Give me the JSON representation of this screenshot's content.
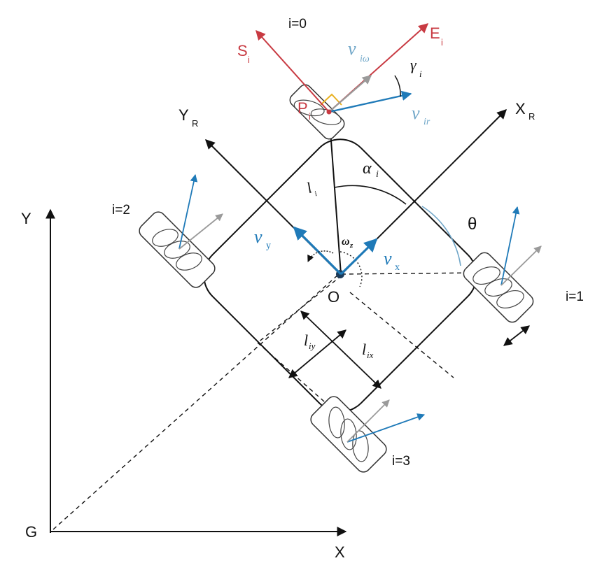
{
  "labels": {
    "wheel0": "i=0",
    "wheel1": "i=1",
    "wheel2": "i=2",
    "wheel3": "i=3",
    "global_x": "X",
    "global_y": "Y",
    "global_origin": "G",
    "robot_origin": "O",
    "robot_x": "X",
    "robot_x_sub": "R",
    "robot_y": "Y",
    "robot_y_sub": "R",
    "e_axis": "E",
    "e_axis_sub": "i",
    "s_axis": "S",
    "s_axis_sub": "i",
    "p_point": "P",
    "p_point_sub": "i",
    "gamma": "γ",
    "gamma_sub": "i",
    "alpha": "α",
    "alpha_sub": "i",
    "theta": "θ",
    "l_len": "l",
    "l_len_sub": "i",
    "v_x": "v",
    "v_x_sub": "x",
    "v_y": "v",
    "v_y_sub": "y",
    "v_iw": "v",
    "v_iw_sub": "iω",
    "v_ir": "v",
    "v_ir_sub": "ir",
    "omega": "ω",
    "omega_sub": "z",
    "l_ix": "l",
    "l_ix_sub": "ix",
    "l_iy": "l",
    "l_iy_sub": "iy"
  },
  "colors": {
    "ink": "#111111",
    "velocity_blue": "#1f7ab8",
    "light_blue": "#6fa6c8",
    "wheel_frame_red": "#c83a42",
    "roller_direction_grey": "#9a9a9a",
    "right_angle_marker": "#e8b020"
  }
}
